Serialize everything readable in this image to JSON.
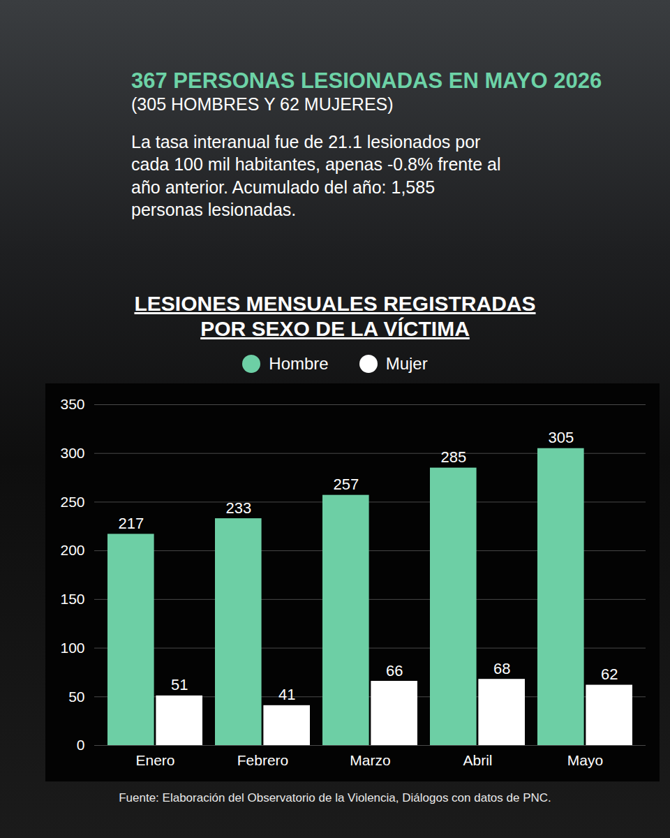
{
  "chart_data": {
    "type": "bar",
    "headline": "367 PERSONAS LESIONADAS EN MAYO 2026",
    "headline_detail": "(305 HOMBRES Y 62 MUJERES)",
    "summary": "La tasa interanual fue de 21.1 lesionados por cada 100 mil habitantes, apenas -0.8% frente al año anterior. Acumulado del año: 1,585 personas lesionadas.",
    "title": "LESIONES MENSUALES REGISTRADAS POR SEXO DE LA VÍCTIMA",
    "categories": [
      "Enero",
      "Febrero",
      "Marzo",
      "Abril",
      "Mayo"
    ],
    "series": [
      {
        "name": "Hombre",
        "color": "#6dcfa5",
        "values": [
          217,
          233,
          257,
          285,
          305
        ]
      },
      {
        "name": "Mujer",
        "color": "#ffffff",
        "values": [
          51,
          41,
          66,
          68,
          62
        ]
      }
    ],
    "ylim": [
      0,
      350
    ],
    "yticks": [
      0,
      50,
      100,
      150,
      200,
      250,
      300,
      350
    ],
    "grid": true,
    "legend": "top",
    "data_labels": true,
    "source": "Fuente: Elaboración del Observatorio de la Violencia, Diálogos con datos de PNC."
  }
}
